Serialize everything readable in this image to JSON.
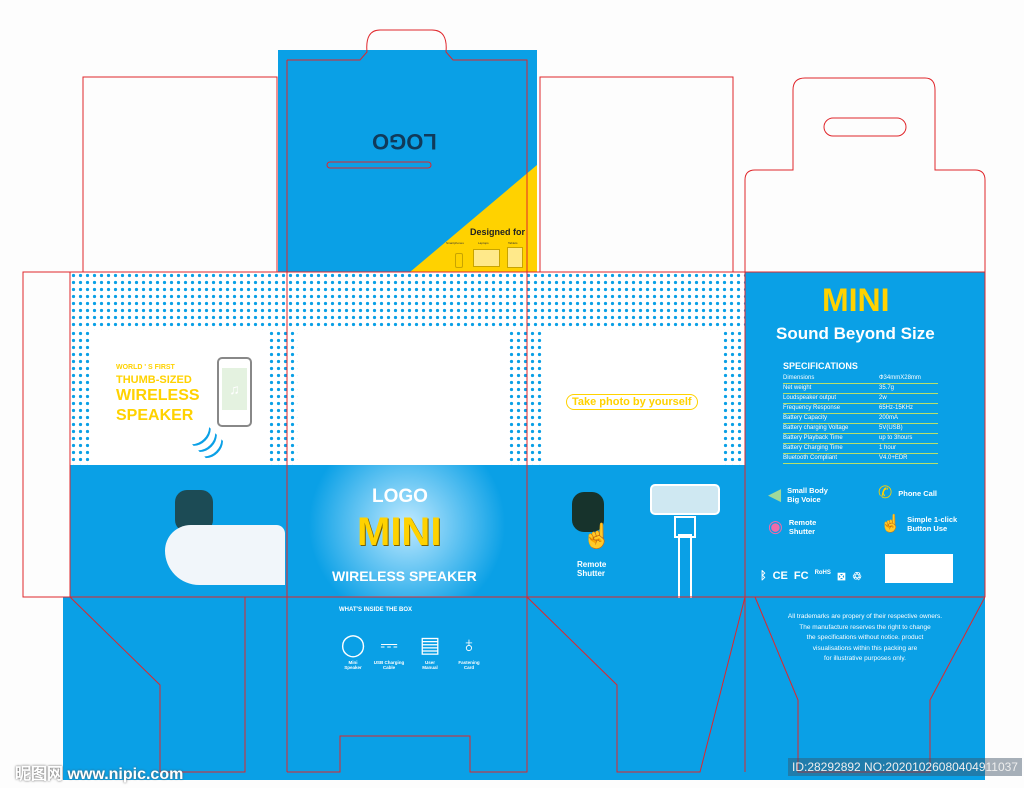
{
  "top_flap": {
    "logo": "LOGO",
    "designed_for": "Designed for",
    "devices": [
      "Smartphones",
      "Laptops",
      "Tablets"
    ]
  },
  "left_panel": {
    "line1": "WORLD ' S FIRST",
    "line2": "THUMB-SIZED",
    "line3": "WIRELESS",
    "line4": "SPEAKER"
  },
  "front_panel": {
    "logo": "LOGO",
    "brand": "MINI",
    "subtitle": "WIRELESS SPEAKER"
  },
  "side_panel": {
    "badge": "Take photo by yourself",
    "remote_label_1": "Remote",
    "remote_label_2": "Shutter"
  },
  "back_panel": {
    "brand": "MINI",
    "tagline": "Sound Beyond Size",
    "specs_title": "SPECIFICATIONS",
    "specs": [
      {
        "k": "Dimensions",
        "v": "Ф34mmX28mm"
      },
      {
        "k": "Net weight",
        "v": "35.7g"
      },
      {
        "k": "Loudspeaker output",
        "v": "2w"
      },
      {
        "k": "Frequency Response",
        "v": "65Hz-15KHz"
      },
      {
        "k": "Battery Capacity",
        "v": "200mA"
      },
      {
        "k": "Battery charging Voltage",
        "v": "5V(USB)"
      },
      {
        "k": "Battery Playback Time",
        "v": "up to 3hours"
      },
      {
        "k": "Battery Charging Time",
        "v": "1 hour"
      },
      {
        "k": "Bluetooth Compliant",
        "v": "V4.0+EDR"
      }
    ],
    "features": [
      {
        "icon": "speaker-icon",
        "l1": "Small Body",
        "l2": "Big Voice"
      },
      {
        "icon": "phone-icon",
        "l1": "Phone Call",
        "l2": ""
      },
      {
        "icon": "camera-icon",
        "l1": "Remote",
        "l2": "Shutter"
      },
      {
        "icon": "hand-click-icon",
        "l1": "Simple 1-click",
        "l2": "Button Use"
      }
    ],
    "certs": [
      "ᛒ",
      "CE",
      "FC",
      "RoHS",
      "⊠",
      "♲"
    ]
  },
  "bottom": {
    "inside_title": "WHAT'S INSIDE THE BOX",
    "items": [
      {
        "l1": "Mini",
        "l2": "Speaker"
      },
      {
        "l1": "USB Charging",
        "l2": "Cable"
      },
      {
        "l1": "User",
        "l2": "Manual"
      },
      {
        "l1": "Fastening",
        "l2": "Card"
      }
    ],
    "disclaimer": [
      "All trademarks are propery of their respective owners.",
      "The manufacture reserves the right to change",
      "the specifications without notice. product",
      "visualisations within this packing are",
      "for illustrative purposes only."
    ]
  },
  "watermark": {
    "site": "昵图网 www.nipic.com",
    "id": "ID:28292892 NO:20201026080404911037"
  },
  "colors": {
    "blue": "#0aa0e6",
    "yellow": "#ffd200",
    "dieline": "#e0262b"
  }
}
